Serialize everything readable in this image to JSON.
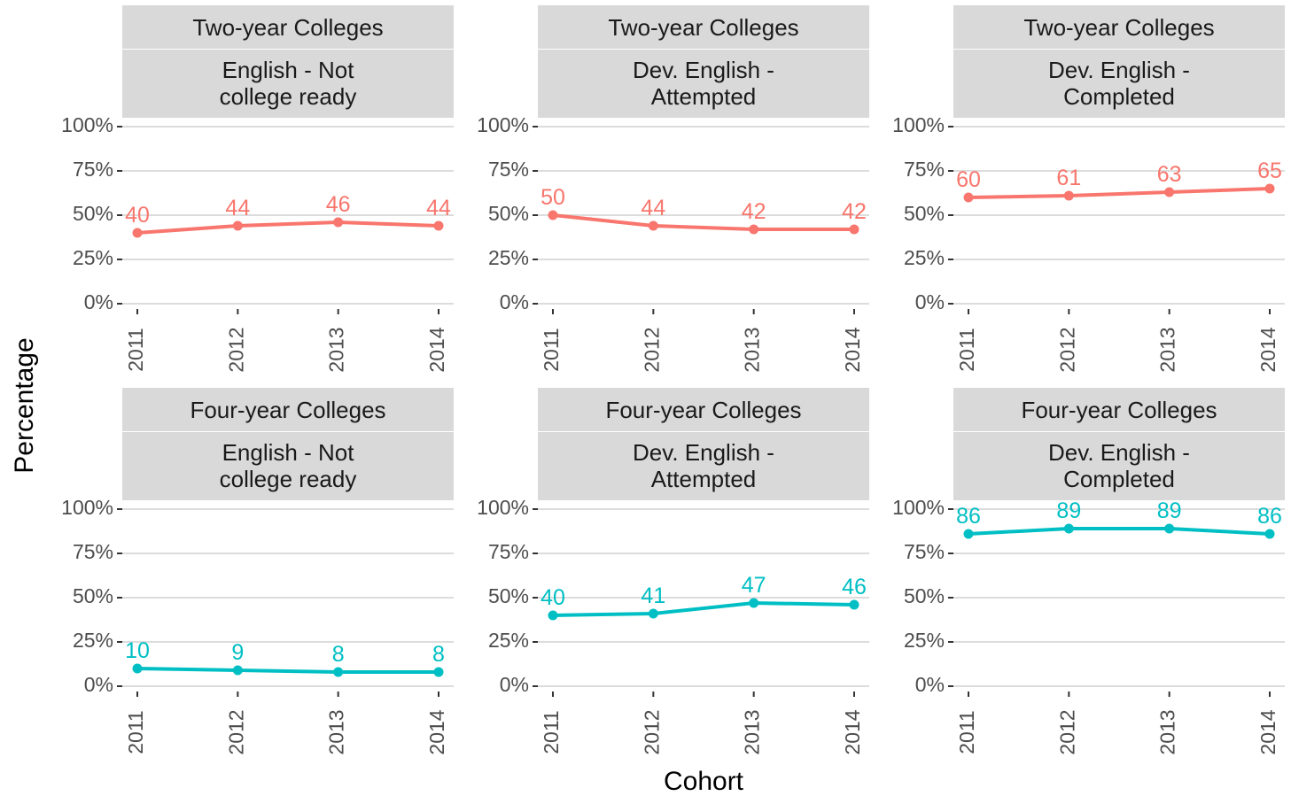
{
  "chart_data": {
    "type": "line",
    "xlabel": "Cohort",
    "ylabel": "Percentage",
    "x": [
      "2011",
      "2012",
      "2013",
      "2014"
    ],
    "ylim": [
      0,
      100
    ],
    "y_ticks": [
      "0%",
      "25%",
      "50%",
      "75%",
      "100%"
    ],
    "y_tick_values": [
      0,
      25,
      50,
      75,
      100
    ],
    "grid": true,
    "colors": {
      "Two-year Colleges": "#F8766D",
      "Four-year Colleges": "#00BFC4"
    },
    "panels": [
      {
        "row": "Two-year Colleges",
        "col": "English - Not college ready",
        "col_lines": [
          "English - Not",
          "college ready"
        ],
        "values": [
          40,
          44,
          46,
          44
        ]
      },
      {
        "row": "Two-year Colleges",
        "col": "Dev. English - Attempted",
        "col_lines": [
          "Dev. English -",
          "Attempted"
        ],
        "values": [
          50,
          44,
          42,
          42
        ]
      },
      {
        "row": "Two-year Colleges",
        "col": "Dev. English - Completed",
        "col_lines": [
          "Dev. English -",
          "Completed"
        ],
        "values": [
          60,
          61,
          63,
          65
        ]
      },
      {
        "row": "Four-year Colleges",
        "col": "English - Not college ready",
        "col_lines": [
          "English - Not",
          "college ready"
        ],
        "values": [
          10,
          9,
          8,
          8
        ]
      },
      {
        "row": "Four-year Colleges",
        "col": "Dev. English - Attempted",
        "col_lines": [
          "Dev. English -",
          "Attempted"
        ],
        "values": [
          40,
          41,
          47,
          46
        ]
      },
      {
        "row": "Four-year Colleges",
        "col": "Dev. English - Completed",
        "col_lines": [
          "Dev. English -",
          "Completed"
        ],
        "values": [
          86,
          89,
          89,
          86
        ]
      }
    ]
  }
}
